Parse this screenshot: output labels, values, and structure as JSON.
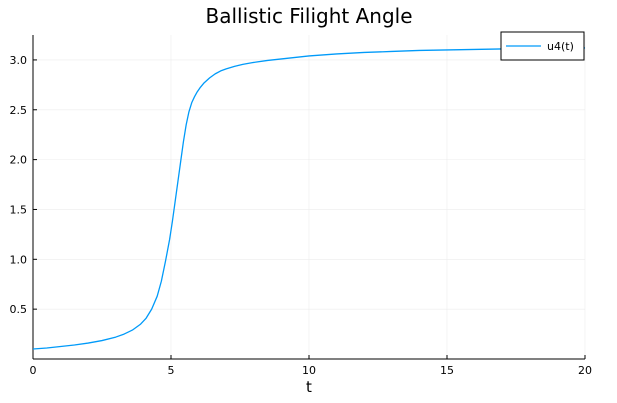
{
  "chart_data": {
    "type": "line",
    "title": "Ballistic Filight Angle",
    "xlabel": "t",
    "ylabel": "",
    "xlim": [
      0,
      20
    ],
    "ylim": [
      0.0,
      3.25
    ],
    "xticks": [
      0,
      5,
      10,
      15,
      20
    ],
    "xtick_labels": [
      "0",
      "5",
      "10",
      "15",
      "20"
    ],
    "yticks": [
      0.5,
      1.0,
      1.5,
      2.0,
      2.5,
      3.0
    ],
    "ytick_labels": [
      "0.5",
      "1.0",
      "1.5",
      "2.0",
      "2.5",
      "3.0"
    ],
    "grid": true,
    "legend_position": "top-right",
    "colors": {
      "series": "#009af9",
      "axis": "#000000",
      "grid": "#ececec"
    },
    "series": [
      {
        "name": "u4(t)",
        "x": [
          0,
          0.5,
          1,
          1.5,
          2,
          2.5,
          3,
          3.3,
          3.6,
          3.9,
          4.1,
          4.3,
          4.5,
          4.65,
          4.8,
          4.95,
          5.05,
          5.15,
          5.25,
          5.35,
          5.45,
          5.55,
          5.65,
          5.75,
          5.85,
          5.95,
          6.05,
          6.2,
          6.4,
          6.6,
          6.8,
          7.0,
          7.3,
          7.6,
          8.0,
          8.5,
          9,
          10,
          11,
          12,
          13,
          14,
          15,
          16,
          17,
          18,
          19,
          20
        ],
        "y": [
          0.1,
          0.11,
          0.125,
          0.14,
          0.16,
          0.185,
          0.22,
          0.25,
          0.29,
          0.35,
          0.41,
          0.5,
          0.63,
          0.78,
          0.98,
          1.2,
          1.38,
          1.58,
          1.78,
          1.98,
          2.18,
          2.35,
          2.48,
          2.57,
          2.63,
          2.68,
          2.72,
          2.77,
          2.82,
          2.86,
          2.89,
          2.91,
          2.935,
          2.955,
          2.975,
          2.995,
          3.01,
          3.04,
          3.06,
          3.075,
          3.085,
          3.095,
          3.1,
          3.105,
          3.11,
          3.115,
          3.118,
          3.12
        ]
      }
    ]
  }
}
